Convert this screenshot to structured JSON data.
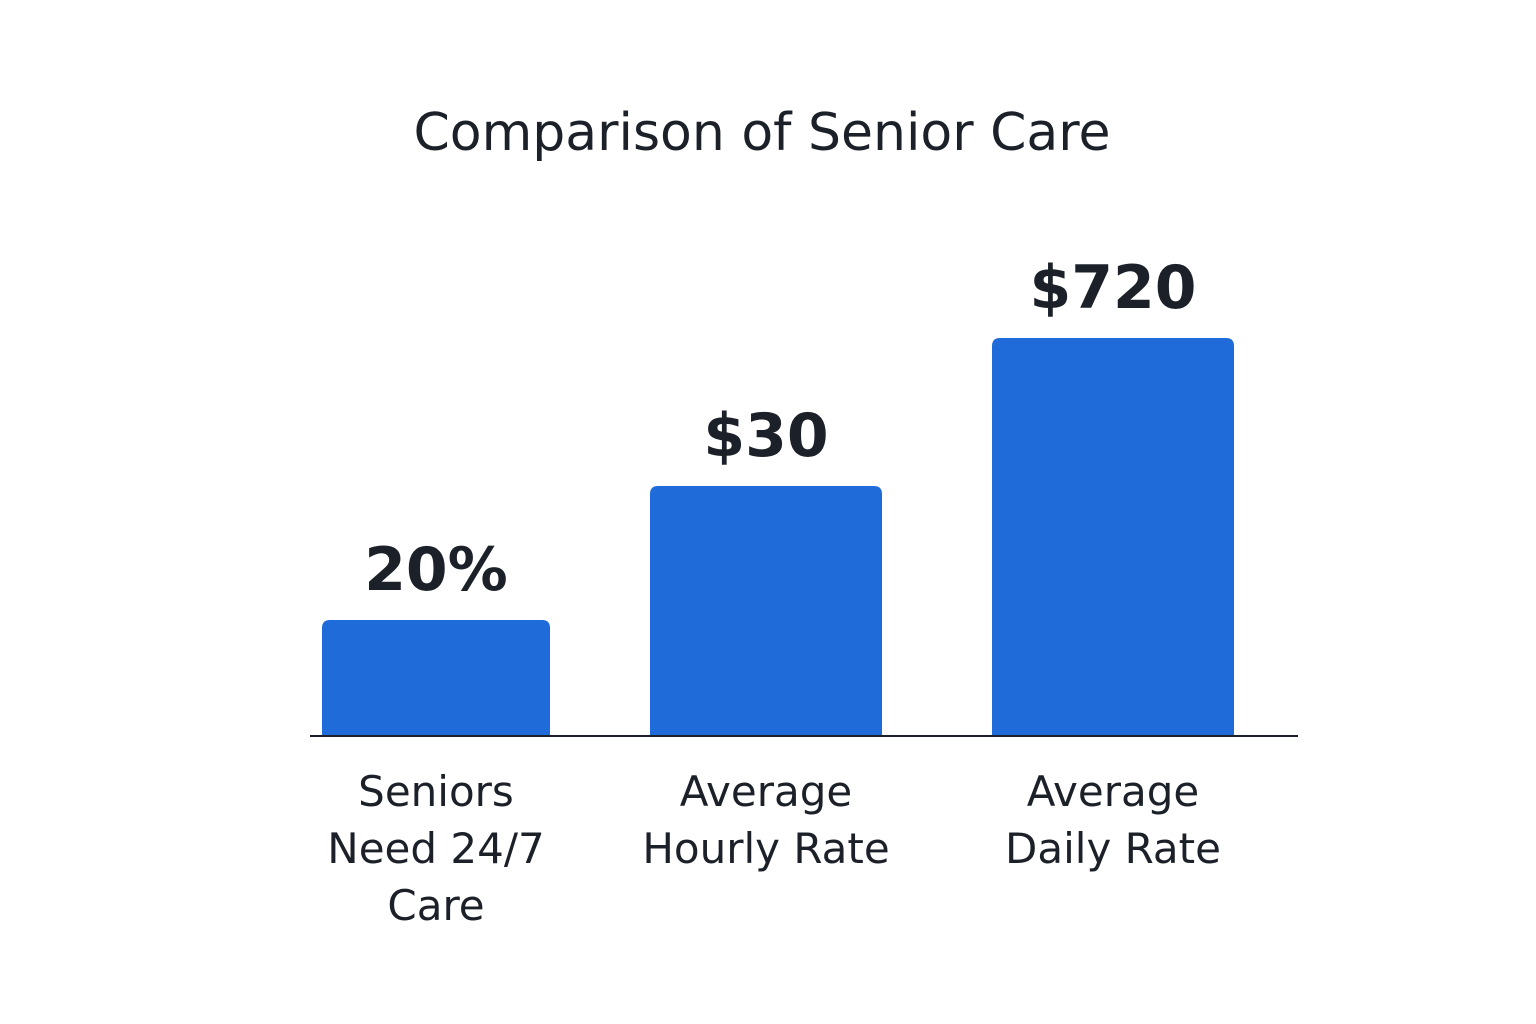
{
  "chart_data": {
    "type": "bar",
    "title": "Comparison of Senior Care",
    "categories": [
      [
        "Seniors",
        "Need 24/7",
        "Care"
      ],
      [
        "Average",
        "Hourly Rate"
      ],
      [
        "Average",
        "Daily Rate"
      ]
    ],
    "series": [
      {
        "values": [
          20,
          30,
          720
        ],
        "value_labels": [
          "20%",
          "$30",
          "$720"
        ]
      }
    ],
    "note": "Bars use mixed units (percent, dollars per hour, dollars per day); bar heights are not on a shared scale.",
    "relative_heights": [
      0.2924,
      0.6269,
      1.0
    ],
    "bar_color": "#1f6bd9",
    "axis_color": "#1c2129",
    "text_color": "#1c2129",
    "grid": false,
    "legend": "none"
  }
}
